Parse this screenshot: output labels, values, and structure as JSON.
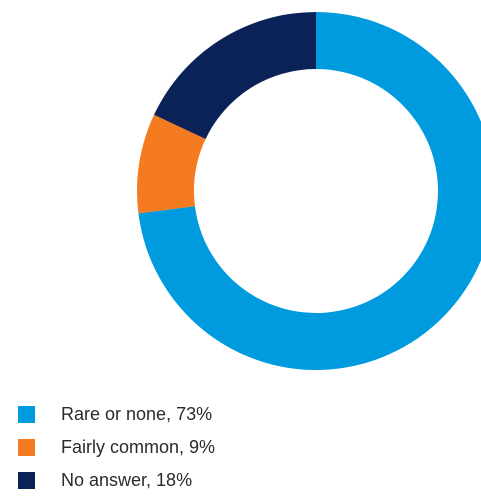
{
  "chart_data": {
    "type": "pie",
    "donut": true,
    "title": "",
    "start_angle_deg": 0,
    "direction": "clockwise",
    "legend_position": "bottom-left",
    "slices": [
      {
        "label": "Rare or none",
        "value": 73,
        "legend_text": "Rare or none, 73%",
        "color": "#009ade"
      },
      {
        "label": "Fairly common",
        "value": 9,
        "legend_text": "Fairly common, 9%",
        "color": "#f47b20"
      },
      {
        "label": "No answer",
        "value": 18,
        "legend_text": "No answer, 18%",
        "color": "#0b2258"
      }
    ]
  },
  "legend": {
    "items": [
      {
        "text": "Rare or none, 73%",
        "color": "#009ade"
      },
      {
        "text": "Fairly common, 9%",
        "color": "#f47b20"
      },
      {
        "text": "No answer, 18%",
        "color": "#0b2258"
      }
    ]
  }
}
